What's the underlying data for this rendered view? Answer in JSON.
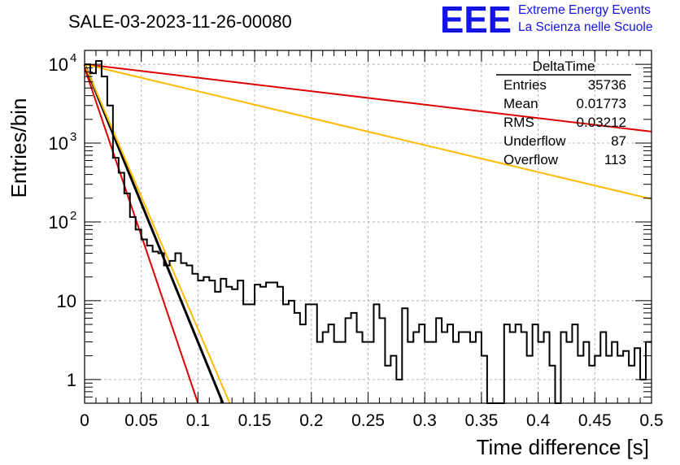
{
  "header": {
    "run_title": "SALE-03-2023-11-26-00080",
    "logo_text": "EEE",
    "logo_line1": "Extreme Energy Events",
    "logo_line2": "La Scienza nelle Scuole"
  },
  "colors": {
    "logo_blue": "#1414e6",
    "histogram": "#000000",
    "fit_black": "#000000",
    "fit_red": "#dd0000",
    "fit_orange": "#ffbb00",
    "grid": "#b4b4b4",
    "frame": "#000000"
  },
  "stats_box": {
    "title": "DeltaTime",
    "rows": [
      {
        "label": "Entries",
        "value": "35736"
      },
      {
        "label": "Mean",
        "value": "0.01773"
      },
      {
        "label": "RMS",
        "value": "0.03212"
      },
      {
        "label": "Underflow",
        "value": "87"
      },
      {
        "label": "Overflow",
        "value": "113"
      }
    ]
  },
  "chart_data": {
    "type": "histogram",
    "xlabel": "Time difference [s]",
    "ylabel": "Entries/bin",
    "xlim": [
      0,
      0.5
    ],
    "ylim": [
      0.5,
      15000
    ],
    "y_scale": "log",
    "grid": true,
    "x_ticks": [
      "0",
      "0.05",
      "0.1",
      "0.15",
      "0.2",
      "0.25",
      "0.3",
      "0.35",
      "0.4",
      "0.45",
      "0.5"
    ],
    "x_tick_values": [
      0,
      0.05,
      0.1,
      0.15,
      0.2,
      0.25,
      0.3,
      0.35,
      0.4,
      0.45,
      0.5
    ],
    "y_ticks": [
      {
        "value": 1,
        "label": "1"
      },
      {
        "value": 10,
        "label": "10"
      },
      {
        "value": 100,
        "label": "10",
        "exp": "2"
      },
      {
        "value": 1000,
        "label": "10",
        "exp": "3"
      },
      {
        "value": 10000,
        "label": "10",
        "exp": "4"
      }
    ],
    "bin_width": 0.005,
    "counts": [
      10000,
      7700,
      11000,
      7000,
      3000,
      650,
      420,
      230,
      115,
      80,
      60,
      50,
      42,
      40,
      28,
      32,
      40,
      30,
      28,
      22,
      18,
      20,
      18,
      13,
      19,
      15,
      14,
      18,
      9,
      9,
      16,
      15,
      17,
      17,
      15,
      9,
      10,
      7,
      5,
      9,
      9,
      3,
      4,
      5,
      3,
      3,
      6,
      7,
      4,
      3,
      3,
      9,
      6,
      1.5,
      2,
      1,
      8,
      3,
      4,
      5,
      3,
      3,
      6,
      4,
      5,
      3,
      4,
      4,
      3,
      4,
      2,
      0,
      0.3,
      0.3,
      5,
      4,
      5,
      4,
      2,
      5,
      3,
      4,
      1.5,
      0.3,
      4,
      3,
      5,
      2,
      3,
      1.5,
      2,
      4,
      2,
      3,
      2,
      2.3,
      1.5,
      2.5,
      1,
      3
    ],
    "fits": [
      {
        "color": "black",
        "x": [
          0,
          0.122
        ],
        "y": [
          10000,
          0.5
        ]
      },
      {
        "color": "orange",
        "x": [
          0,
          0.128
        ],
        "y": [
          10000,
          0.5
        ]
      },
      {
        "color": "red",
        "x": [
          0,
          0.1
        ],
        "y": [
          9000,
          0.5
        ]
      },
      {
        "color": "red",
        "x": [
          0,
          0.5
        ],
        "y": [
          10000,
          1400
        ]
      },
      {
        "color": "orange",
        "x": [
          0,
          0.5
        ],
        "y": [
          10000,
          195
        ]
      }
    ]
  }
}
